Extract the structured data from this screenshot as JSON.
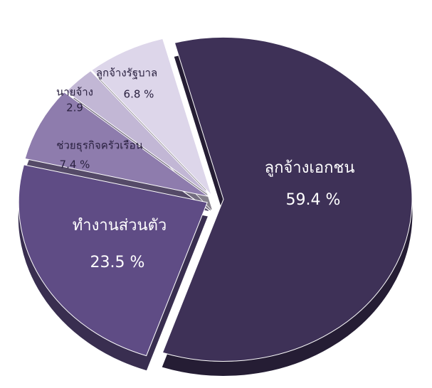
{
  "chart_data": {
    "type": "pie",
    "categories": [
      "ลูกจ้างเอกชน",
      "ทำงานส่วนตัว",
      "ช่วยธุรกิจครัวเรือน",
      "นายจ้าง",
      "ลูกจ้างรัฐบาล"
    ],
    "values": [
      59.4,
      23.5,
      7.4,
      2.9,
      6.8
    ],
    "value_labels": [
      "59.4 %",
      "23.5 %",
      "7.4 %",
      "2.9",
      "6.8 %"
    ],
    "colors": [
      "#3e3157",
      "#5f4c85",
      "#8e7cad",
      "#c2b7d5",
      "#ddd6ea"
    ]
  }
}
